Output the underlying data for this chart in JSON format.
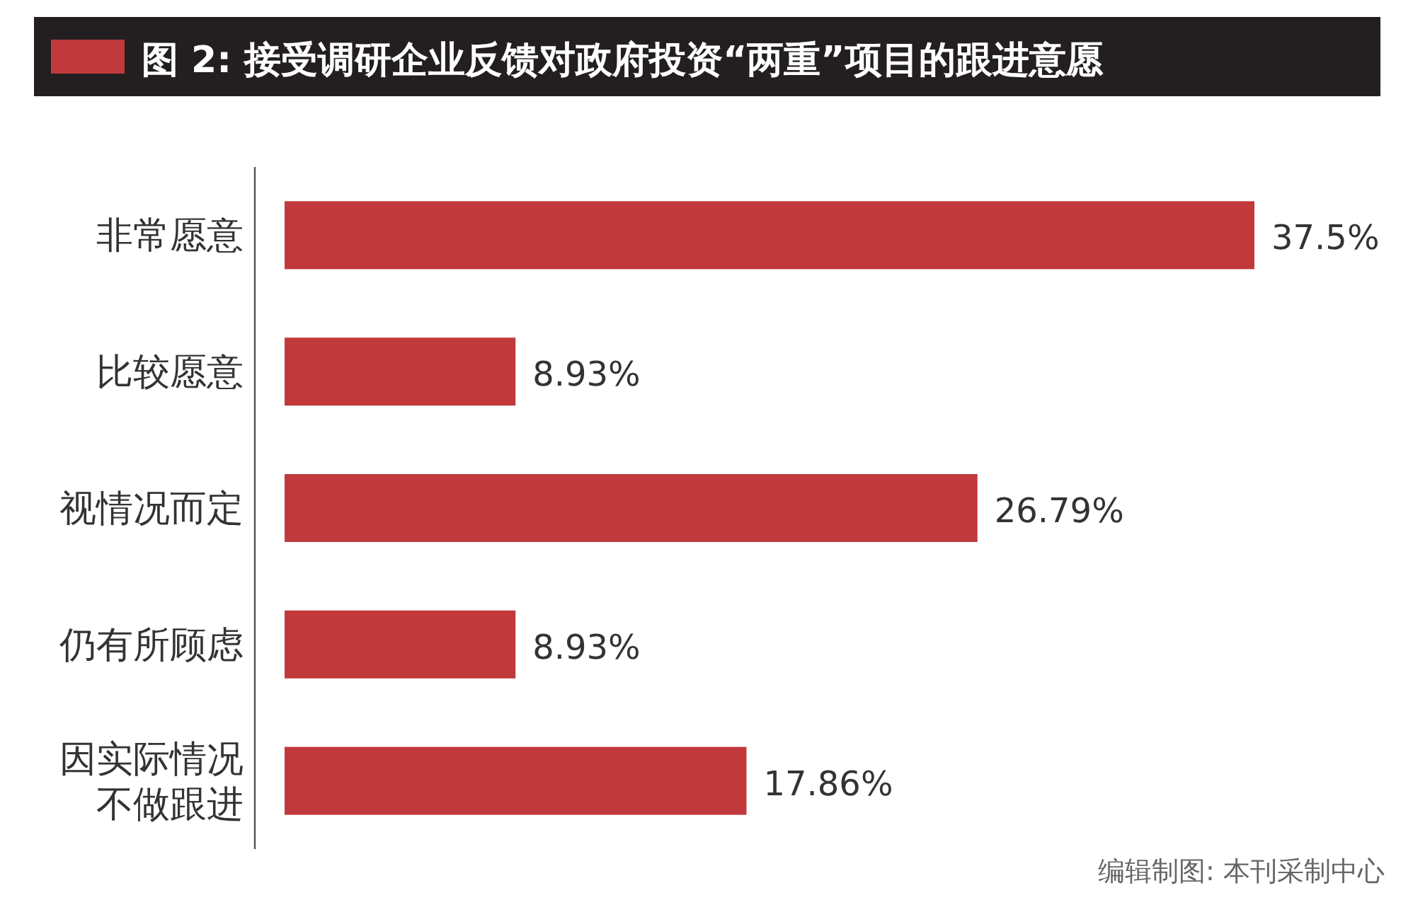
{
  "chart_data": {
    "type": "bar",
    "orientation": "horizontal",
    "title": "图 2: 接受调研企业反馈对政府投资“两重”项目的跟进意愿",
    "categories": [
      "非常愿意",
      "比较愿意",
      "视情况而定",
      "仍有所顾虑",
      "因实际情况不做跟进"
    ],
    "values": [
      37.5,
      8.93,
      26.79,
      8.93,
      17.86
    ],
    "value_labels": [
      "37.5%",
      "8.93%",
      "26.79%",
      "8.93%",
      "17.86%"
    ],
    "color": "#c1393a",
    "annotations": [
      "编辑制图: 本刊采制中心"
    ]
  }
}
